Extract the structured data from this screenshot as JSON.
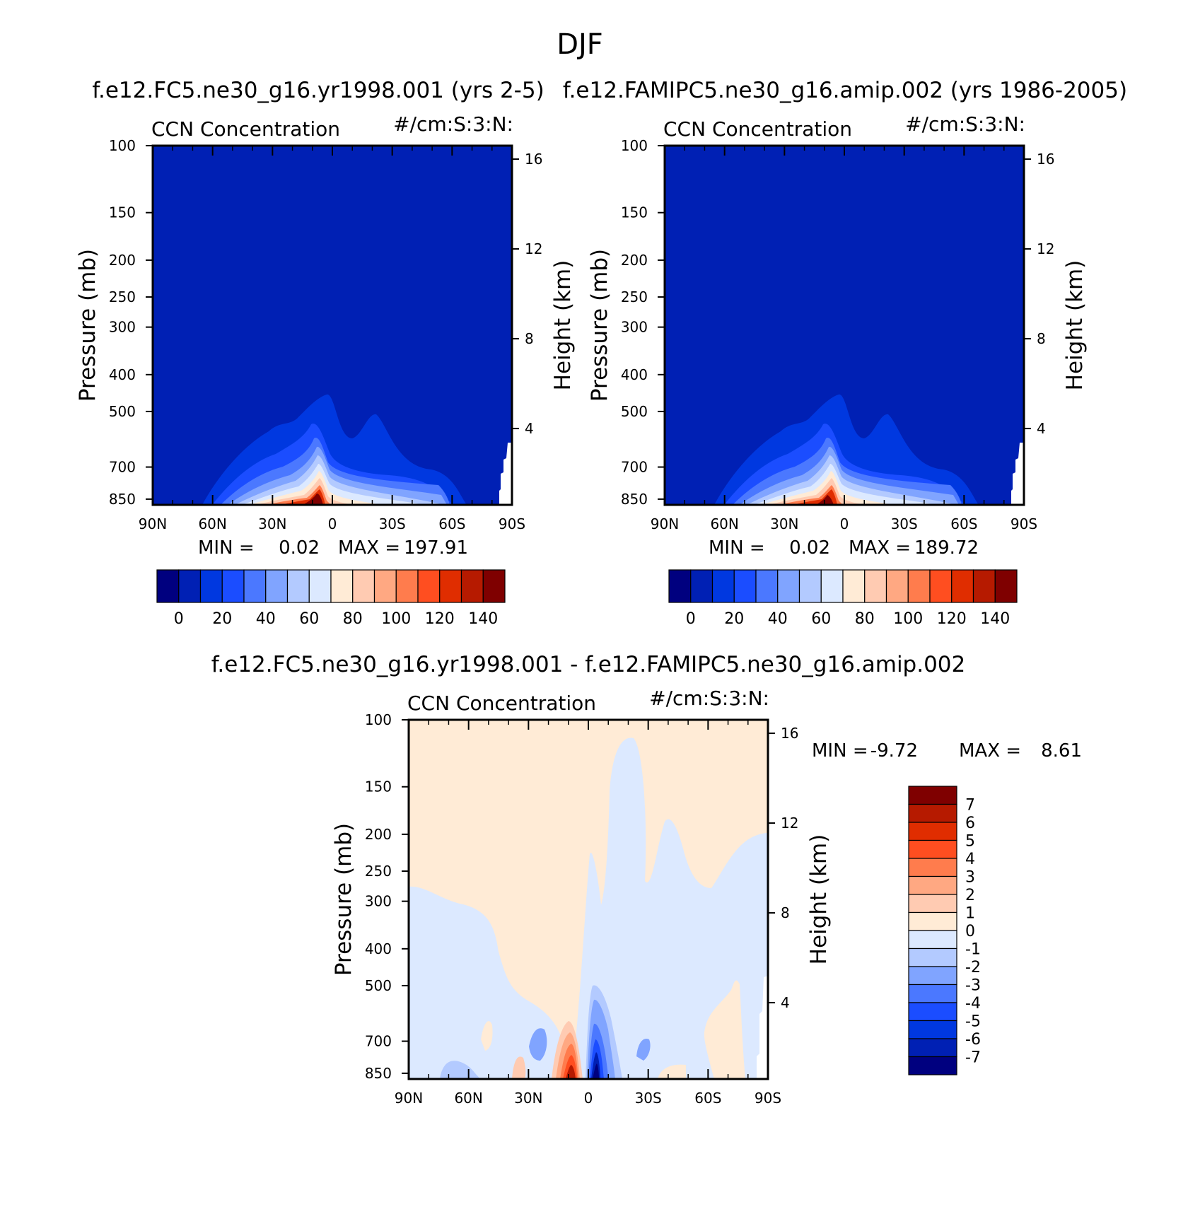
{
  "figure": {
    "title": "DJF"
  },
  "chart_data": [
    {
      "type": "heatmap",
      "title": "f.e12.FC5.ne30_g16.yr1998.001 (yrs 2-5)",
      "left_string": "CCN Concentration",
      "right_string": "#/cm:S:3:N:",
      "xlabel": "",
      "ylabel": "Pressure (mb)",
      "ylabel_right": "Height (km)",
      "x_ticks": [
        "90N",
        "60N",
        "30N",
        "0",
        "30S",
        "60S",
        "90S"
      ],
      "y_ticks": [
        "100",
        "150",
        "200",
        "250",
        "300",
        "400",
        "500",
        "700",
        "850"
      ],
      "y_ticks_right": [
        "16",
        "12",
        "8",
        "4"
      ],
      "xlim": [
        90,
        -90
      ],
      "ylim": [
        880,
        100
      ],
      "y_scale": "log",
      "min_label": "MIN =",
      "min": "0.02",
      "max_label": "MAX =",
      "max": "197.91",
      "colorbar": {
        "orientation": "horizontal",
        "labels": [
          "0",
          "20",
          "40",
          "60",
          "80",
          "100",
          "120",
          "140"
        ],
        "levels": [
          -10,
          0,
          10,
          20,
          30,
          40,
          50,
          60,
          70,
          80,
          90,
          100,
          110,
          120,
          130,
          140,
          150
        ],
        "colors": [
          "#00007f",
          "#0020b4",
          "#0038e0",
          "#1b4dff",
          "#4b78ff",
          "#80a4ff",
          "#b3caff",
          "#dce9ff",
          "#ffebd6",
          "#ffcbb2",
          "#ffa882",
          "#ff7c4d",
          "#ff4e20",
          "#e02d00",
          "#b61a00",
          "#7f0000"
        ]
      }
    },
    {
      "type": "heatmap",
      "title": "f.e12.FAMIPC5.ne30_g16.amip.002 (yrs 1986-2005)",
      "left_string": "CCN Concentration",
      "right_string": "#/cm:S:3:N:",
      "xlabel": "",
      "ylabel": "Pressure (mb)",
      "ylabel_right": "Height (km)",
      "x_ticks": [
        "90N",
        "60N",
        "30N",
        "0",
        "30S",
        "60S",
        "90S"
      ],
      "y_ticks": [
        "100",
        "150",
        "200",
        "250",
        "300",
        "400",
        "500",
        "700",
        "850"
      ],
      "y_ticks_right": [
        "16",
        "12",
        "8",
        "4"
      ],
      "xlim": [
        90,
        -90
      ],
      "ylim": [
        880,
        100
      ],
      "y_scale": "log",
      "min_label": "MIN =",
      "min": "0.02",
      "max_label": "MAX =",
      "max": "189.72",
      "colorbar": {
        "orientation": "horizontal",
        "labels": [
          "0",
          "20",
          "40",
          "60",
          "80",
          "100",
          "120",
          "140"
        ],
        "levels": [
          -10,
          0,
          10,
          20,
          30,
          40,
          50,
          60,
          70,
          80,
          90,
          100,
          110,
          120,
          130,
          140,
          150
        ],
        "colors": [
          "#00007f",
          "#0020b4",
          "#0038e0",
          "#1b4dff",
          "#4b78ff",
          "#80a4ff",
          "#b3caff",
          "#dce9ff",
          "#ffebd6",
          "#ffcbb2",
          "#ffa882",
          "#ff7c4d",
          "#ff4e20",
          "#e02d00",
          "#b61a00",
          "#7f0000"
        ]
      }
    },
    {
      "type": "heatmap",
      "title": "f.e12.FC5.ne30_g16.yr1998.001 - f.e12.FAMIPC5.ne30_g16.amip.002",
      "left_string": "CCN Concentration",
      "right_string": "#/cm:S:3:N:",
      "xlabel": "",
      "ylabel": "Pressure (mb)",
      "ylabel_right": "Height (km)",
      "x_ticks": [
        "90N",
        "60N",
        "30N",
        "0",
        "30S",
        "60S",
        "90S"
      ],
      "y_ticks": [
        "100",
        "150",
        "200",
        "250",
        "300",
        "400",
        "500",
        "700",
        "850"
      ],
      "y_ticks_right": [
        "16",
        "12",
        "8",
        "4"
      ],
      "xlim": [
        90,
        -90
      ],
      "ylim": [
        880,
        100
      ],
      "y_scale": "log",
      "min_label": "MIN =",
      "min": "-9.72",
      "max_label": "MAX =",
      "max": "8.61",
      "colorbar": {
        "orientation": "vertical",
        "labels": [
          "7",
          "6",
          "5",
          "4",
          "3",
          "2",
          "1",
          "0",
          "-1",
          "-2",
          "-3",
          "-4",
          "-5",
          "-6",
          "-7"
        ],
        "levels": [
          8,
          7,
          6,
          5,
          4,
          3,
          2,
          1,
          0,
          -1,
          -2,
          -3,
          -4,
          -5,
          -6,
          -7,
          -8
        ],
        "colors": [
          "#7f0000",
          "#b61a00",
          "#e02d00",
          "#ff4e20",
          "#ff7c4d",
          "#ffa882",
          "#ffcbb2",
          "#ffebd6",
          "#dce9ff",
          "#b3caff",
          "#80a4ff",
          "#4b78ff",
          "#1b4dff",
          "#0038e0",
          "#0020b4",
          "#00007f"
        ]
      }
    }
  ]
}
